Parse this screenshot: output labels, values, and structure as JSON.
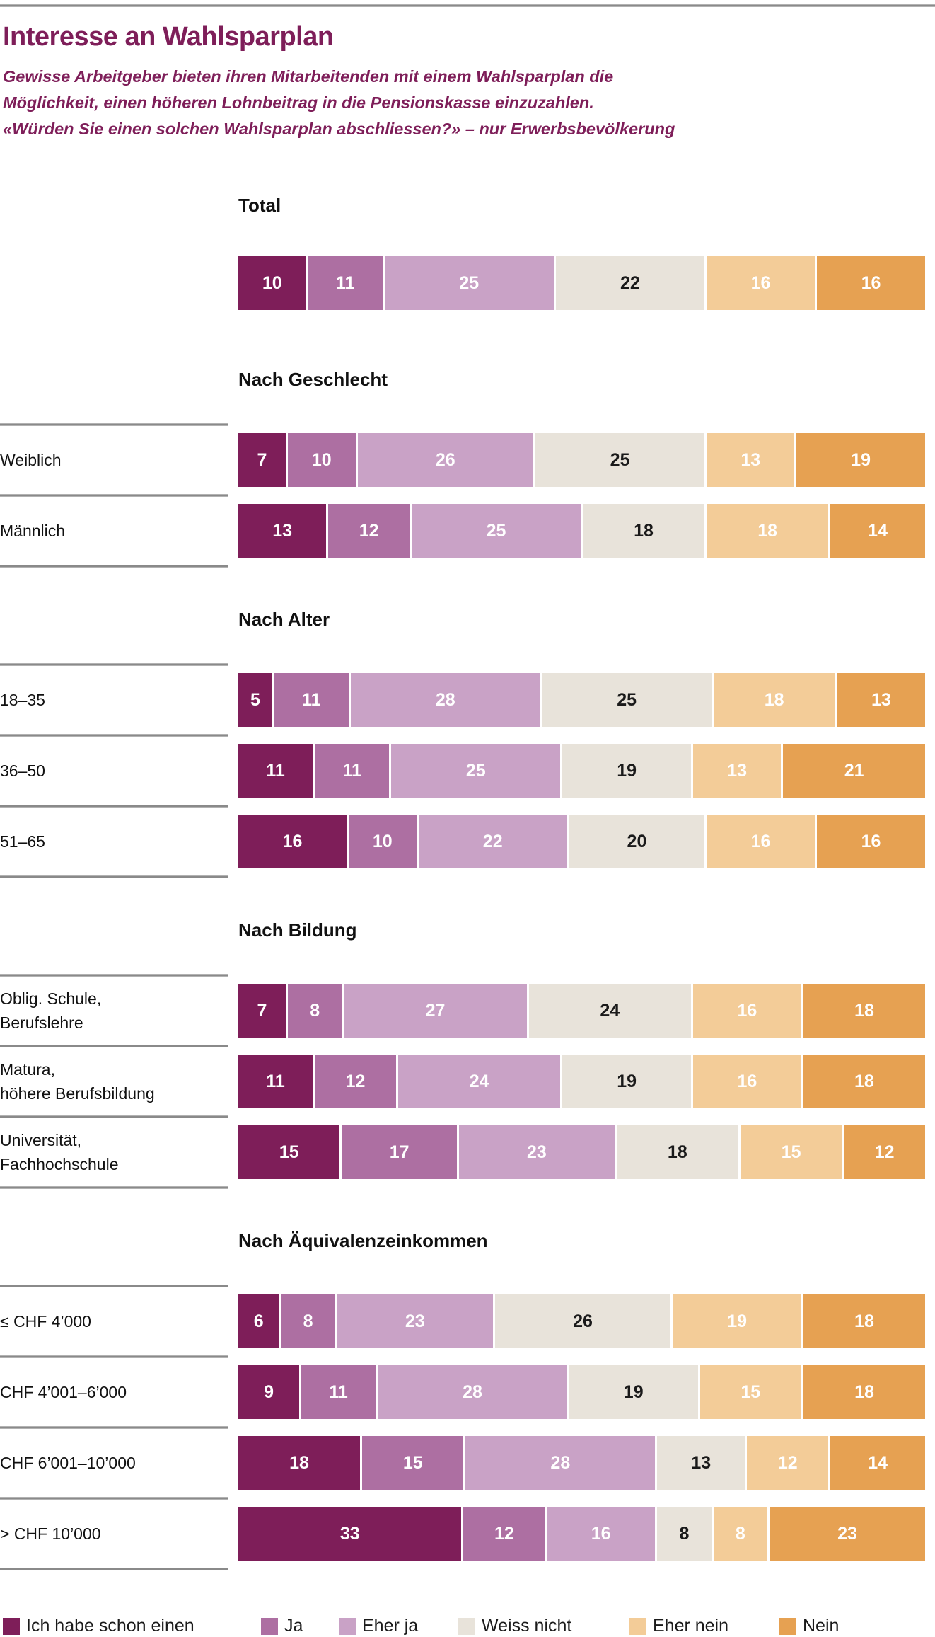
{
  "header": {
    "title": "Interesse an Wahlsparplan",
    "subtitle_lines": [
      "Gewisse Arbeitgeber bieten ihren Mitarbeitenden mit einem Wahlsparplan die",
      "Möglichkeit, einen höheren Lohnbeitrag in die Pensionskasse einzuzahlen.",
      "«Würden Sie einen solchen Wahlsparplan abschliessen?» – nur Erwerbsbevölkerung"
    ]
  },
  "colors": {
    "accent_title": "#7E1E59",
    "categories": [
      "#7E1E59",
      "#AD6FA2",
      "#C9A2C6",
      "#E8E3DA",
      "#F3CC98",
      "#E6A152"
    ],
    "value_text_light": "#FFFFFF",
    "value_text_dark": "#1A1A1A",
    "dark_text_segment_indexes": [
      3
    ],
    "separator": "#8A8A8A"
  },
  "legend": {
    "items": [
      {
        "label": "Ich habe schon einen",
        "color": "#7E1E59"
      },
      {
        "label": "Ja",
        "color": "#AD6FA2"
      },
      {
        "label": "Eher ja",
        "color": "#C9A2C6"
      },
      {
        "label": "Weiss nicht",
        "color": "#E8E3DA"
      },
      {
        "label": "Eher nein",
        "color": "#F3CC98"
      },
      {
        "label": "Nein",
        "color": "#E6A152"
      }
    ]
  },
  "chart_data": {
    "type": "bar",
    "orientation": "horizontal_stacked",
    "unit": "percent",
    "xlim": [
      0,
      100
    ],
    "grid": false,
    "legend_position": "bottom",
    "series_names": [
      "Ich habe schon einen",
      "Ja",
      "Eher ja",
      "Weiss nicht",
      "Eher nein",
      "Nein"
    ],
    "sections": [
      {
        "header": "Total",
        "show_separators": false,
        "rows": [
          {
            "label_lines": [],
            "values": [
              10,
              11,
              25,
              22,
              16,
              16
            ]
          }
        ]
      },
      {
        "header": "Nach Geschlecht",
        "show_separators": true,
        "rows": [
          {
            "label_lines": [
              "Weiblich"
            ],
            "values": [
              7,
              10,
              26,
              25,
              13,
              19
            ]
          },
          {
            "label_lines": [
              "Männlich"
            ],
            "values": [
              13,
              12,
              25,
              18,
              18,
              14
            ]
          }
        ]
      },
      {
        "header": "Nach Alter",
        "show_separators": true,
        "rows": [
          {
            "label_lines": [
              "18–35"
            ],
            "values": [
              5,
              11,
              28,
              25,
              18,
              13
            ]
          },
          {
            "label_lines": [
              "36–50"
            ],
            "values": [
              11,
              11,
              25,
              19,
              13,
              21
            ]
          },
          {
            "label_lines": [
              "51–65"
            ],
            "values": [
              16,
              10,
              22,
              20,
              16,
              16
            ]
          }
        ]
      },
      {
        "header": "Nach Bildung",
        "show_separators": true,
        "rows": [
          {
            "label_lines": [
              "Oblig. Schule,",
              "Berufslehre"
            ],
            "values": [
              7,
              8,
              27,
              24,
              16,
              18
            ]
          },
          {
            "label_lines": [
              "Matura,",
              "höhere Berufsbildung"
            ],
            "values": [
              11,
              12,
              24,
              19,
              16,
              18
            ]
          },
          {
            "label_lines": [
              "Universität,",
              "Fachhochschule"
            ],
            "values": [
              15,
              17,
              23,
              18,
              15,
              12
            ]
          }
        ]
      },
      {
        "header": "Nach Äquivalenzeinkommen",
        "show_separators": true,
        "rows": [
          {
            "label_lines": [
              "≤ CHF 4’000"
            ],
            "values": [
              6,
              8,
              23,
              26,
              19,
              18
            ]
          },
          {
            "label_lines": [
              "CHF 4’001–6’000"
            ],
            "values": [
              9,
              11,
              28,
              19,
              15,
              18
            ]
          },
          {
            "label_lines": [
              "CHF 6’001–10’000"
            ],
            "values": [
              18,
              15,
              28,
              13,
              12,
              14
            ]
          },
          {
            "label_lines": [
              "> CHF 10’000"
            ],
            "values": [
              33,
              12,
              16,
              8,
              8,
              23
            ]
          }
        ]
      }
    ]
  }
}
